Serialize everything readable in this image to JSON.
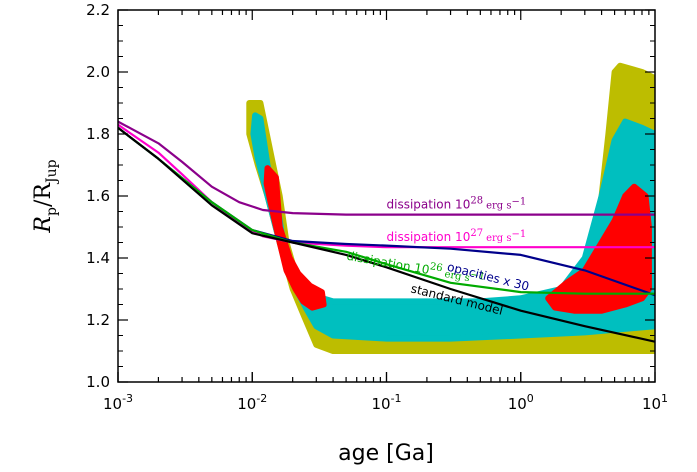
{
  "chart_data": {
    "type": "line",
    "xlabel": "age [Ga]",
    "ylabel_main": "R",
    "ylabel_main_sub": "p",
    "ylabel_ref": "/R",
    "ylabel_ref_sub": "Jup",
    "xscale": "log",
    "xlim": [
      0.001,
      10
    ],
    "ylim": [
      1.0,
      2.2
    ],
    "x_ticks": [
      {
        "value": 0.001,
        "base": "10",
        "exp": "-3"
      },
      {
        "value": 0.01,
        "base": "10",
        "exp": "-2"
      },
      {
        "value": 0.1,
        "base": "10",
        "exp": "-1"
      },
      {
        "value": 1,
        "base": "10",
        "exp": "0"
      },
      {
        "value": 10,
        "base": "10",
        "exp": "1"
      }
    ],
    "y_ticks": [
      "1.0",
      "1.2",
      "1.4",
      "1.6",
      "1.8",
      "2.0",
      "2.2"
    ],
    "grid": false,
    "regions": [
      {
        "name": "olive",
        "color": "#bdbd00",
        "polygon": [
          [
            0.0095,
            1.9
          ],
          [
            0.0115,
            1.9
          ],
          [
            0.014,
            1.72
          ],
          [
            0.016,
            1.6
          ],
          [
            0.018,
            1.45
          ],
          [
            0.021,
            1.35
          ],
          [
            0.03,
            1.22
          ],
          [
            0.04,
            1.2
          ],
          [
            0.1,
            1.18
          ],
          [
            0.5,
            1.18
          ],
          [
            1,
            1.2
          ],
          [
            2,
            1.25
          ],
          [
            3,
            1.35
          ],
          [
            4,
            1.6
          ],
          [
            4.5,
            1.8
          ],
          [
            5,
            2.0
          ],
          [
            5.5,
            2.02
          ],
          [
            8,
            2.0
          ],
          [
            10,
            1.98
          ],
          [
            10,
            1.1
          ],
          [
            3,
            1.1
          ],
          [
            1,
            1.1
          ],
          [
            0.3,
            1.1
          ],
          [
            0.1,
            1.1
          ],
          [
            0.04,
            1.1
          ],
          [
            0.03,
            1.12
          ],
          [
            0.025,
            1.2
          ],
          [
            0.02,
            1.3
          ],
          [
            0.016,
            1.45
          ],
          [
            0.013,
            1.6
          ],
          [
            0.011,
            1.7
          ],
          [
            0.0095,
            1.8
          ]
        ]
      },
      {
        "name": "cyan",
        "color": "#00bfbf",
        "polygon": [
          [
            0.0105,
            1.86
          ],
          [
            0.0115,
            1.85
          ],
          [
            0.013,
            1.7
          ],
          [
            0.015,
            1.6
          ],
          [
            0.017,
            1.45
          ],
          [
            0.02,
            1.36
          ],
          [
            0.028,
            1.28
          ],
          [
            0.04,
            1.26
          ],
          [
            0.1,
            1.26
          ],
          [
            0.5,
            1.26
          ],
          [
            1,
            1.27
          ],
          [
            2,
            1.3
          ],
          [
            3,
            1.4
          ],
          [
            4,
            1.6
          ],
          [
            5,
            1.78
          ],
          [
            6,
            1.84
          ],
          [
            8,
            1.82
          ],
          [
            10,
            1.8
          ],
          [
            10,
            1.18
          ],
          [
            3,
            1.16
          ],
          [
            1,
            1.15
          ],
          [
            0.3,
            1.14
          ],
          [
            0.1,
            1.14
          ],
          [
            0.04,
            1.15
          ],
          [
            0.03,
            1.18
          ],
          [
            0.025,
            1.24
          ],
          [
            0.02,
            1.32
          ],
          [
            0.016,
            1.45
          ],
          [
            0.013,
            1.6
          ],
          [
            0.011,
            1.72
          ],
          [
            0.0102,
            1.8
          ]
        ]
      },
      {
        "name": "red_left",
        "color": "#ff0000",
        "polygon": [
          [
            0.013,
            1.69
          ],
          [
            0.015,
            1.66
          ],
          [
            0.016,
            1.5
          ],
          [
            0.019,
            1.4
          ],
          [
            0.022,
            1.35
          ],
          [
            0.027,
            1.31
          ],
          [
            0.033,
            1.29
          ],
          [
            0.034,
            1.25
          ],
          [
            0.028,
            1.24
          ],
          [
            0.024,
            1.26
          ],
          [
            0.021,
            1.3
          ],
          [
            0.018,
            1.36
          ],
          [
            0.016,
            1.45
          ],
          [
            0.014,
            1.56
          ],
          [
            0.0128,
            1.64
          ]
        ]
      },
      {
        "name": "red_right",
        "color": "#ff0000",
        "polygon": [
          [
            1.6,
            1.27
          ],
          [
            2.2,
            1.32
          ],
          [
            3,
            1.36
          ],
          [
            4,
            1.45
          ],
          [
            5,
            1.52
          ],
          [
            6,
            1.6
          ],
          [
            7,
            1.63
          ],
          [
            8.5,
            1.6
          ],
          [
            9,
            1.5
          ],
          [
            9,
            1.3
          ],
          [
            8,
            1.27
          ],
          [
            6,
            1.25
          ],
          [
            4,
            1.23
          ],
          [
            2.5,
            1.23
          ],
          [
            1.8,
            1.24
          ]
        ]
      }
    ],
    "series": [
      {
        "color": "#8b008b",
        "x": [
          0.001,
          0.002,
          0.003,
          0.005,
          0.008,
          0.012,
          0.02,
          0.05,
          0.1,
          1,
          10
        ],
        "y": [
          1.84,
          1.77,
          1.71,
          1.63,
          1.58,
          1.555,
          1.545,
          1.54,
          1.54,
          1.54,
          1.54
        ]
      },
      {
        "color": "#ff00cc",
        "x": [
          0.001,
          0.002,
          0.003,
          0.005,
          0.008,
          0.012,
          0.02,
          0.05,
          0.1,
          1,
          10
        ],
        "y": [
          1.83,
          1.74,
          1.67,
          1.58,
          1.51,
          1.47,
          1.45,
          1.44,
          1.435,
          1.435,
          1.435
        ]
      },
      {
        "color": "#00008b",
        "x": [
          0.001,
          0.002,
          0.005,
          0.01,
          0.02,
          0.05,
          0.1,
          0.3,
          1,
          3,
          10
        ],
        "y": [
          1.82,
          1.72,
          1.58,
          1.49,
          1.455,
          1.445,
          1.44,
          1.43,
          1.41,
          1.36,
          1.28
        ]
      },
      {
        "color": "#00aa00",
        "x": [
          0.001,
          0.002,
          0.005,
          0.01,
          0.02,
          0.05,
          0.1,
          0.3,
          1,
          3,
          10
        ],
        "y": [
          1.82,
          1.72,
          1.58,
          1.49,
          1.45,
          1.42,
          1.38,
          1.32,
          1.29,
          1.285,
          1.285
        ]
      },
      {
        "color": "#000000",
        "x": [
          0.001,
          0.002,
          0.005,
          0.01,
          0.02,
          0.05,
          0.1,
          0.3,
          1,
          3,
          10
        ],
        "y": [
          1.82,
          1.72,
          1.57,
          1.48,
          1.45,
          1.41,
          1.37,
          1.3,
          1.23,
          1.18,
          1.13
        ]
      }
    ],
    "annotations": [
      {
        "color": "#8b008b",
        "text": "dissipation 10",
        "sup": "28",
        "unit": "erg s",
        "unit_sup": "−1",
        "x": 0.1,
        "y": 1.56,
        "rotate": 0
      },
      {
        "color": "#ff00cc",
        "text": "dissipation 10",
        "sup": "27",
        "unit": "erg s",
        "unit_sup": "−1",
        "x": 0.1,
        "y": 1.455,
        "rotate": 0
      },
      {
        "color": "#00aa00",
        "text": "dissipation 10",
        "sup": "26",
        "unit": "erg s",
        "unit_sup": "−1",
        "x": 0.05,
        "y": 1.395,
        "rotate": 10
      },
      {
        "color": "#00008b",
        "text": "opacities x 30",
        "x": 0.28,
        "y": 1.36,
        "rotate": 14
      },
      {
        "color": "#000000",
        "text": "standard model",
        "x": 0.15,
        "y": 1.29,
        "rotate": 14
      }
    ]
  }
}
